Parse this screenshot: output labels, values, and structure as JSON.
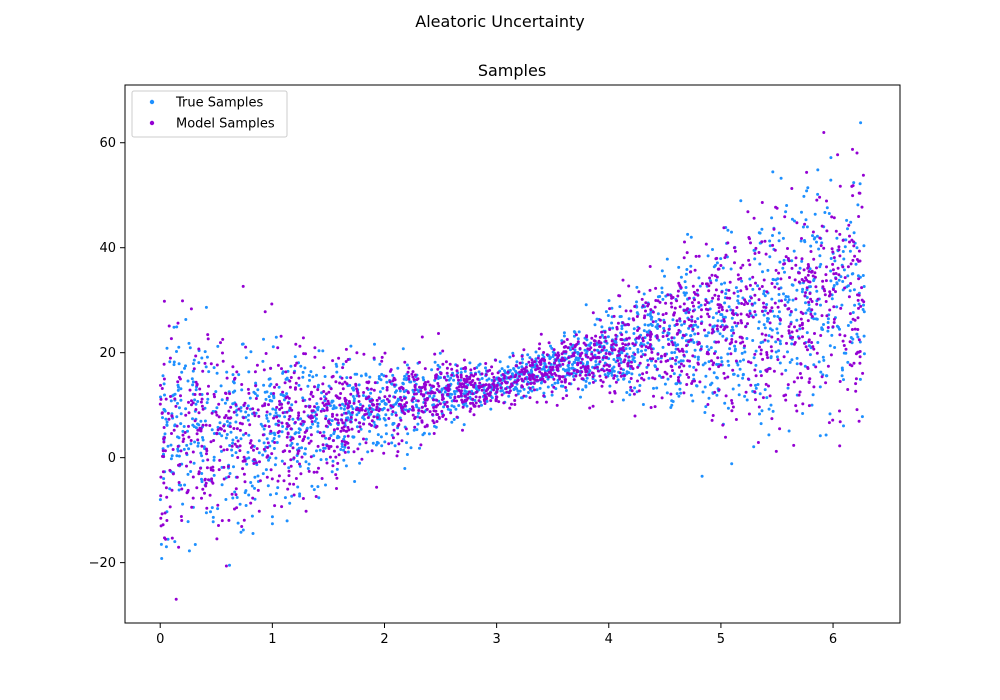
{
  "figure": {
    "suptitle": "Aleatoric Uncertainty"
  },
  "chart_data": {
    "type": "scatter",
    "title": "Samples",
    "xlabel": "",
    "ylabel": "",
    "xlim": [
      -0.314,
      6.597
    ],
    "ylim": [
      -31.5,
      71.0
    ],
    "xticks": [
      0,
      1,
      2,
      3,
      4,
      5,
      6
    ],
    "xtick_labels": [
      "0",
      "1",
      "2",
      "3",
      "4",
      "5",
      "6"
    ],
    "yticks": [
      -20,
      0,
      20,
      40,
      60
    ],
    "ytick_labels": [
      "−20",
      "0",
      "20",
      "40",
      "60"
    ],
    "grid": false,
    "legend_position": "top-left",
    "description_of_trend": {
      "x_range": [
        0,
        6.28
      ],
      "mean_y_at_x": [
        [
          0,
          3
        ],
        [
          1,
          5
        ],
        [
          2,
          10
        ],
        [
          3,
          14
        ],
        [
          4,
          20
        ],
        [
          5,
          25
        ],
        [
          6.28,
          32
        ]
      ],
      "spread_sd_at_x": [
        [
          0,
          11
        ],
        [
          1,
          8
        ],
        [
          2,
          4.5
        ],
        [
          3,
          1.7
        ],
        [
          4,
          3.5
        ],
        [
          5,
          9
        ],
        [
          6.28,
          12
        ]
      ],
      "points_per_series": 2000
    },
    "series": [
      {
        "name": "True Samples",
        "color": "#1e90ff",
        "seed": 17
      },
      {
        "name": "Model Samples",
        "color": "#9400d3",
        "seed": 91
      }
    ]
  }
}
